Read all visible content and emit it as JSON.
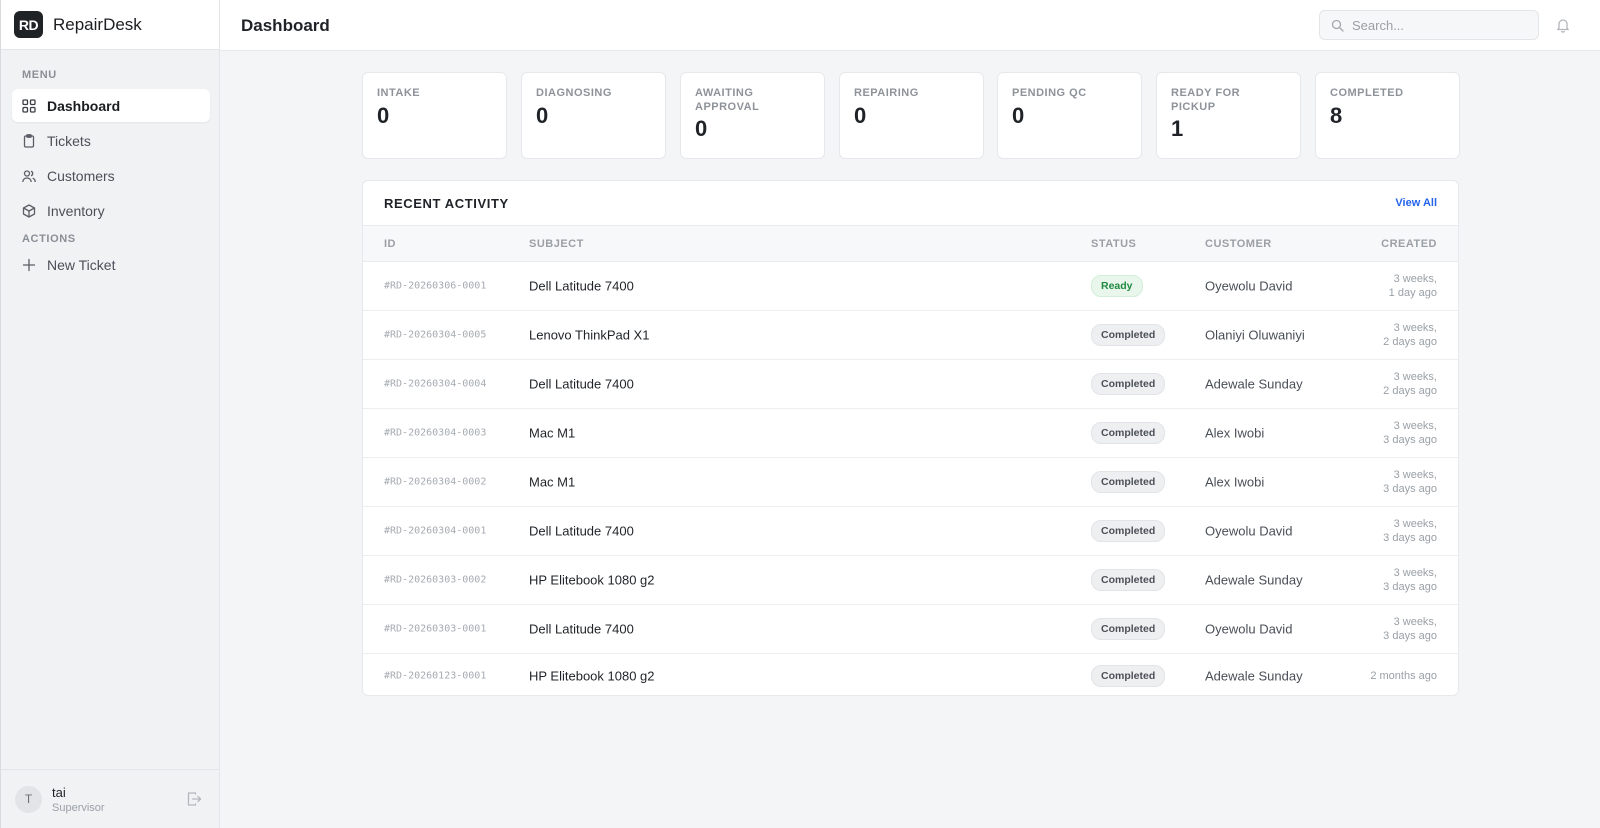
{
  "brand": {
    "logo": "RD",
    "name": "RepairDesk"
  },
  "sidebar": {
    "menu_label": "MENU",
    "items": [
      {
        "label": "Dashboard",
        "icon": "grid-icon"
      },
      {
        "label": "Tickets",
        "icon": "clipboard-icon"
      },
      {
        "label": "Customers",
        "icon": "users-icon"
      },
      {
        "label": "Inventory",
        "icon": "box-icon"
      }
    ],
    "actions_label": "ACTIONS",
    "actions": [
      {
        "label": "New Ticket",
        "icon": "plus-icon"
      }
    ]
  },
  "user": {
    "initial": "T",
    "name": "tai",
    "role": "Supervisor"
  },
  "header": {
    "title": "Dashboard",
    "search_placeholder": "Search..."
  },
  "stats": [
    {
      "label": "INTAKE",
      "value": "0"
    },
    {
      "label": "DIAGNOSING",
      "value": "0"
    },
    {
      "label": "AWAITING APPROVAL",
      "value": "0"
    },
    {
      "label": "REPAIRING",
      "value": "0"
    },
    {
      "label": "PENDING QC",
      "value": "0"
    },
    {
      "label": "READY FOR PICKUP",
      "value": "1"
    },
    {
      "label": "COMPLETED",
      "value": "8"
    }
  ],
  "activity": {
    "title": "RECENT ACTIVITY",
    "view_all": "View All",
    "columns": [
      "ID",
      "SUBJECT",
      "STATUS",
      "CUSTOMER",
      "CREATED"
    ],
    "rows": [
      {
        "id": "#RD-20260306-0001",
        "subject": "Dell Latitude 7400",
        "status": "Ready",
        "customer": "Oyewolu David",
        "created_1": "3 weeks,",
        "created_2": "1 day ago"
      },
      {
        "id": "#RD-20260304-0005",
        "subject": "Lenovo ThinkPad X1",
        "status": "Completed",
        "customer": "Olaniyi Oluwaniyi",
        "created_1": "3 weeks,",
        "created_2": "2 days ago"
      },
      {
        "id": "#RD-20260304-0004",
        "subject": "Dell Latitude 7400",
        "status": "Completed",
        "customer": "Adewale Sunday",
        "created_1": "3 weeks,",
        "created_2": "2 days ago"
      },
      {
        "id": "#RD-20260304-0003",
        "subject": "Mac M1",
        "status": "Completed",
        "customer": "Alex Iwobi",
        "created_1": "3 weeks,",
        "created_2": "3 days ago"
      },
      {
        "id": "#RD-20260304-0002",
        "subject": "Mac M1",
        "status": "Completed",
        "customer": "Alex Iwobi",
        "created_1": "3 weeks,",
        "created_2": "3 days ago"
      },
      {
        "id": "#RD-20260304-0001",
        "subject": "Dell Latitude 7400",
        "status": "Completed",
        "customer": "Oyewolu David",
        "created_1": "3 weeks,",
        "created_2": "3 days ago"
      },
      {
        "id": "#RD-20260303-0002",
        "subject": "HP Elitebook 1080 g2",
        "status": "Completed",
        "customer": "Adewale Sunday",
        "created_1": "3 weeks,",
        "created_2": "3 days ago"
      },
      {
        "id": "#RD-20260303-0001",
        "subject": "Dell Latitude 7400",
        "status": "Completed",
        "customer": "Oyewolu David",
        "created_1": "3 weeks,",
        "created_2": "3 days ago"
      },
      {
        "id": "#RD-20260123-0001",
        "subject": "HP Elitebook 1080 g2",
        "status": "Completed",
        "customer": "Adewale Sunday",
        "created_1": "2 months ago",
        "created_2": ""
      }
    ]
  },
  "colors": {
    "accent": "#2563eb",
    "ready_bg": "#e8f6ec",
    "ready_text": "#1f8a3f",
    "sidebar_bg": "#f1f2f4"
  }
}
